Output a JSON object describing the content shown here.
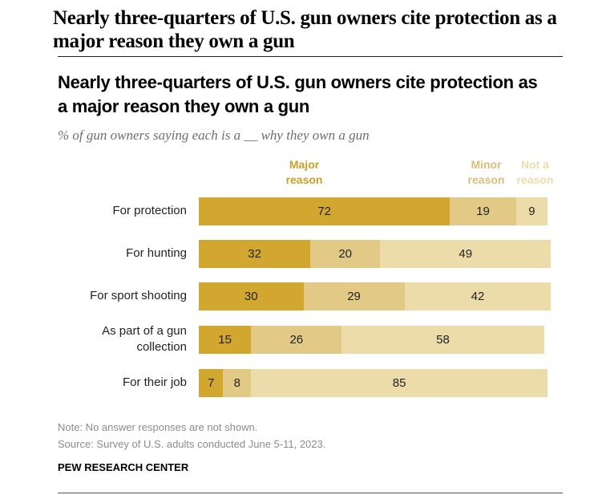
{
  "page": {
    "title": "Nearly three-quarters of U.S. gun owners cite protection as a major reason they own a gun"
  },
  "chart_data": {
    "type": "bar",
    "orientation": "horizontal",
    "stacked": true,
    "title": "Nearly three-quarters of U.S. gun owners cite protection as a major reason they own a gun",
    "subtitle": "% of gun owners saying each is a __ why they own a gun",
    "categories": [
      "For protection",
      "For hunting",
      "For sport shooting",
      "As part of a gun collection",
      "For their job"
    ],
    "series": [
      {
        "name": "Major reason",
        "color": "#d2a72f",
        "values": [
          72,
          32,
          30,
          15,
          7
        ]
      },
      {
        "name": "Minor reason",
        "color": "#e2c985",
        "values": [
          19,
          20,
          29,
          26,
          8
        ]
      },
      {
        "name": "Not a reason",
        "color": "#ecdcaa",
        "values": [
          9,
          49,
          42,
          58,
          85
        ]
      }
    ],
    "legend_labels": [
      {
        "text": "Major reason",
        "color": "#c9a02a"
      },
      {
        "text": "Minor reason",
        "color": "#d7bf7a"
      },
      {
        "text": "Not a reason",
        "color": "#ecdcaa"
      }
    ],
    "xlim": [
      0,
      100
    ],
    "grid": false,
    "legend": "top"
  },
  "footer": {
    "note": "Note: No answer responses are not shown.",
    "source": "Source: Survey of U.S. adults conducted June 5-11, 2023.",
    "brand": "PEW RESEARCH CENTER"
  }
}
